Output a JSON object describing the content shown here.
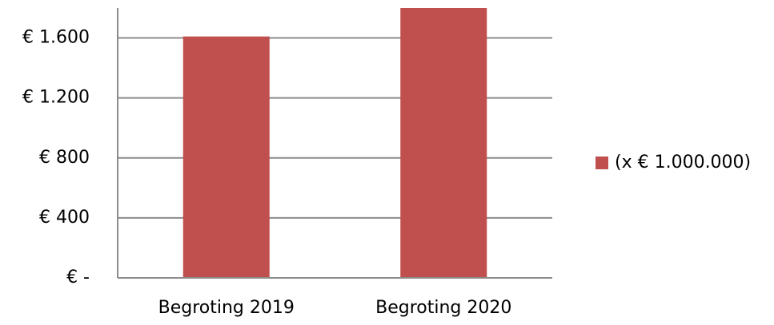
{
  "chart_data": {
    "type": "bar",
    "categories": [
      "Begroting 2019",
      "Begroting 2020"
    ],
    "series": [
      {
        "name": "(x € 1.000.000)",
        "color": "#c0504d",
        "values": [
          1610,
          1800
        ]
      }
    ],
    "ylim": [
      0,
      1800
    ],
    "yticks": [
      {
        "value": 0,
        "label": "€ -"
      },
      {
        "value": 400,
        "label": "€ 400"
      },
      {
        "value": 800,
        "label": "€ 800"
      },
      {
        "value": 1200,
        "label": "€ 1.200"
      },
      {
        "value": 1600,
        "label": "€ 1.600"
      }
    ],
    "grid": true,
    "legend": "right"
  }
}
